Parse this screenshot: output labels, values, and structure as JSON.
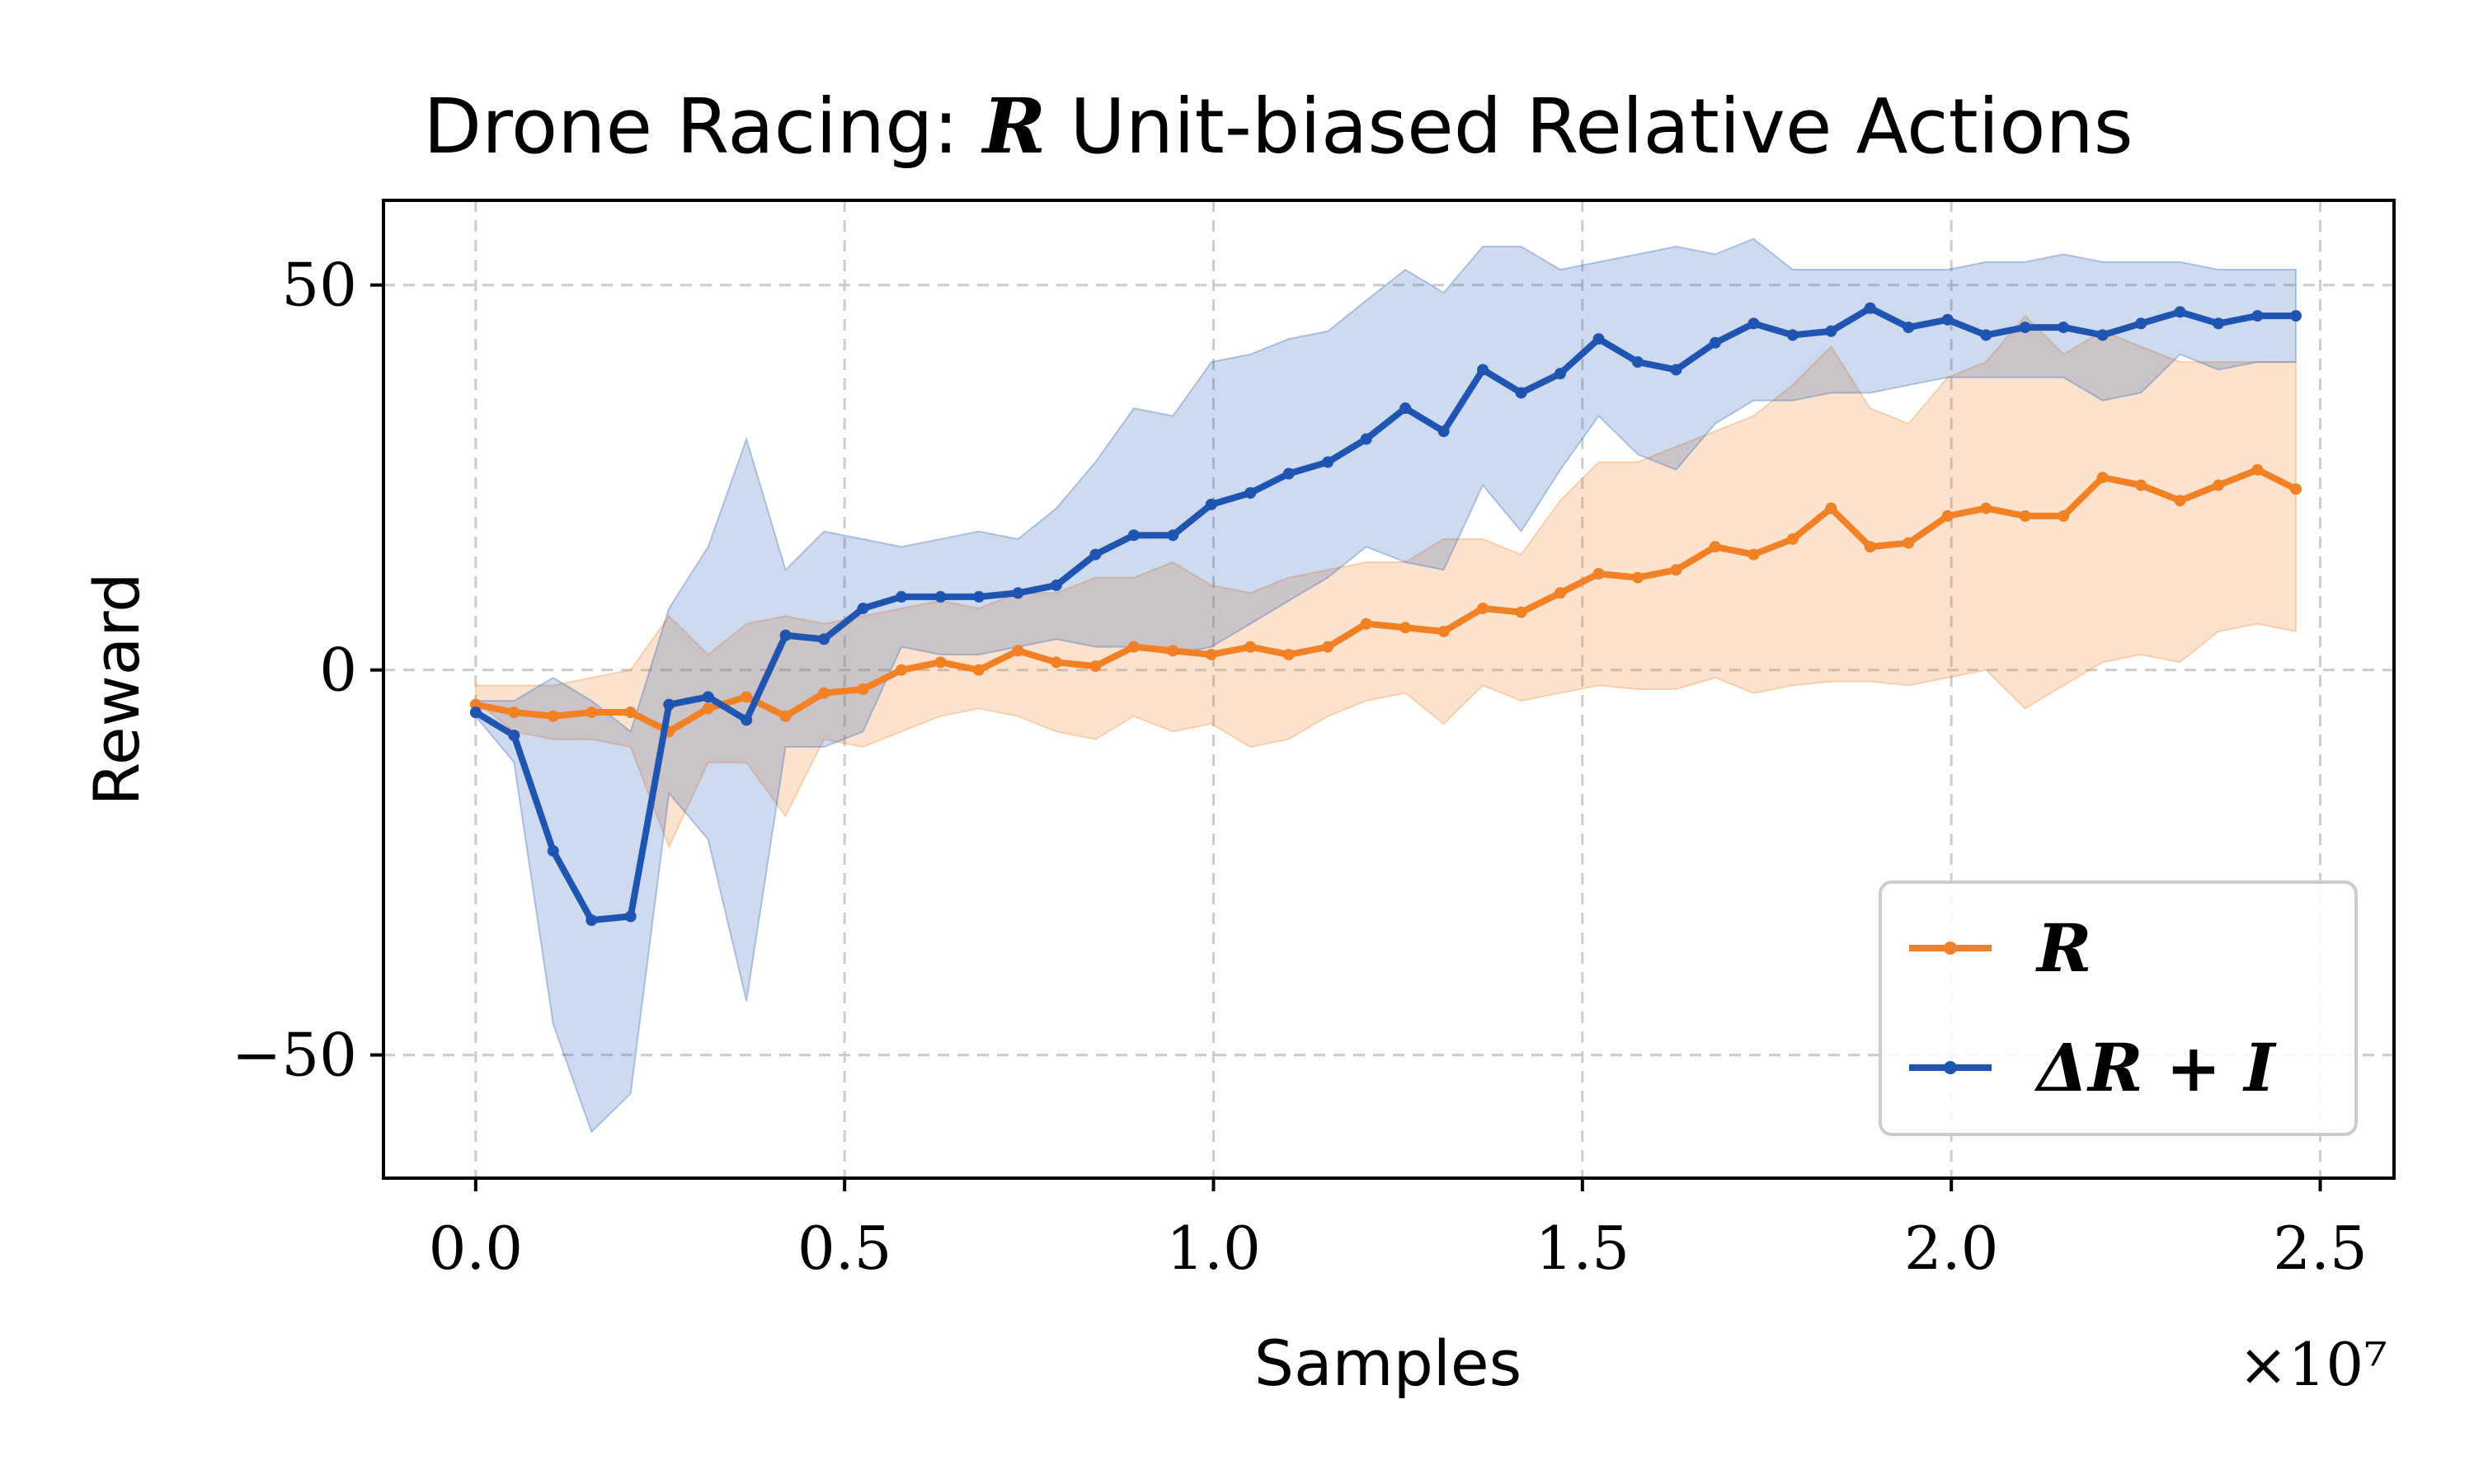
{
  "chart_data": {
    "type": "line",
    "title_prefix": "Drone Racing: ",
    "title_symbol": "R",
    "title_suffix": " Unit-biased Relative Actions",
    "xlabel": "Samples",
    "ylabel": "Reward",
    "x_scale_label": "×10⁷",
    "xlim": [
      -0.125,
      2.6
    ],
    "ylim": [
      -66,
      61
    ],
    "xticks": [
      0.0,
      0.5,
      1.0,
      1.5,
      2.0,
      2.5
    ],
    "xtick_labels": [
      "0.0",
      "0.5",
      "1.0",
      "1.5",
      "2.0",
      "2.5"
    ],
    "yticks": [
      -50,
      0,
      50
    ],
    "ytick_labels": [
      "−50",
      "0",
      "50"
    ],
    "grid": true,
    "legend_position": "lower-right",
    "x": [
      0.0,
      0.052,
      0.105,
      0.157,
      0.21,
      0.262,
      0.315,
      0.367,
      0.42,
      0.472,
      0.525,
      0.577,
      0.63,
      0.682,
      0.735,
      0.787,
      0.84,
      0.892,
      0.945,
      0.997,
      1.05,
      1.102,
      1.155,
      1.207,
      1.26,
      1.312,
      1.365,
      1.417,
      1.47,
      1.522,
      1.575,
      1.627,
      1.68,
      1.732,
      1.785,
      1.837,
      1.89,
      1.942,
      1.995,
      2.047,
      2.1,
      2.152,
      2.205,
      2.257,
      2.31,
      2.362,
      2.415,
      2.467
    ],
    "series": [
      {
        "name": "R",
        "legend_label": "R",
        "color": "#f28024",
        "values": [
          -4.5,
          -5.5,
          -6,
          -5.5,
          -5.5,
          -8,
          -5,
          -3.5,
          -6,
          -3,
          -2.5,
          0,
          1,
          0,
          2.5,
          1,
          0.5,
          3,
          2.5,
          2,
          3,
          2,
          3,
          6,
          5.5,
          5,
          8,
          7.5,
          10,
          12.5,
          12,
          13,
          16,
          15,
          17,
          21,
          16,
          16.5,
          20,
          21,
          20,
          20,
          25,
          24,
          22,
          24,
          26,
          23.5
        ],
        "lower": [
          -4,
          -8,
          -9,
          -9,
          -10,
          -23,
          -12,
          -12,
          -19,
          -9,
          -10,
          -8,
          -6,
          -5,
          -6,
          -8,
          -9,
          -6,
          -8,
          -7,
          -10,
          -9,
          -6,
          -4,
          -3,
          -7,
          -2,
          -4,
          -3,
          -2,
          -2.5,
          -2.5,
          -1,
          -3,
          -2,
          -1.5,
          -1.5,
          -2,
          -1,
          0,
          -5,
          -2,
          1,
          2,
          1,
          5,
          6,
          5
        ],
        "upper": [
          -2,
          -2,
          -2,
          -1,
          0,
          7,
          2,
          6,
          7,
          6,
          7,
          8,
          9,
          8,
          10,
          10,
          12,
          12,
          14,
          11,
          10,
          12,
          13,
          14,
          14,
          17,
          17,
          15,
          22,
          27,
          27,
          29,
          31,
          33,
          37,
          42,
          34,
          32,
          38,
          40,
          46,
          41,
          44,
          42,
          40,
          40,
          40,
          40
        ]
      },
      {
        "name": "ΔR+I",
        "legend_label": "ΔR + I",
        "color": "#1f55b0",
        "values": [
          -5.5,
          -8.5,
          -23.5,
          -32.5,
          -32,
          -4.5,
          -3.5,
          -6.5,
          4.5,
          4,
          8,
          9.5,
          9.5,
          9.5,
          10,
          11,
          15,
          17.5,
          17.5,
          21.5,
          23,
          25.5,
          27,
          30,
          34,
          31,
          39,
          36,
          38.5,
          43,
          40,
          39,
          42.5,
          45,
          43.5,
          44,
          47,
          44.5,
          45.5,
          43.5,
          44.5,
          44.5,
          43.5,
          45,
          46.5,
          45,
          46,
          46
        ],
        "lower": [
          -6,
          -12,
          -46,
          -60,
          -55,
          -16,
          -22,
          -43,
          -10,
          -10,
          -8,
          3,
          2,
          2,
          3,
          4,
          3,
          3,
          2,
          3,
          6,
          9,
          12,
          16,
          14,
          13,
          24,
          18,
          26,
          33,
          28,
          26,
          32,
          35,
          35,
          36,
          36,
          37,
          38,
          38,
          38,
          38,
          35,
          36,
          41,
          39,
          40,
          40
        ],
        "upper": [
          -4,
          -4,
          -1,
          -4,
          -8,
          8,
          16,
          30,
          13,
          18,
          17,
          16,
          17,
          18,
          17,
          21,
          27,
          34,
          33,
          40,
          41,
          43,
          44,
          48,
          52,
          49,
          55,
          55,
          52,
          53,
          54,
          55,
          54,
          56,
          52,
          52,
          52,
          52,
          52,
          53,
          53,
          54,
          53,
          53,
          53,
          52,
          52,
          52
        ]
      }
    ]
  }
}
